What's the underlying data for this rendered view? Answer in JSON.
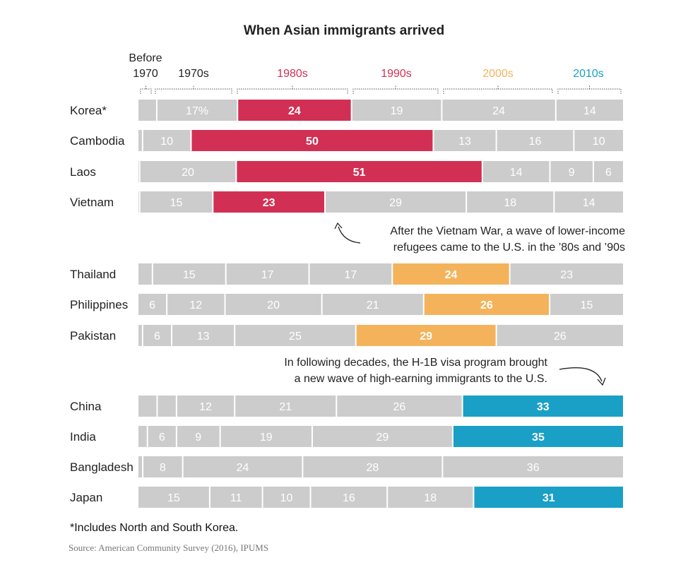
{
  "chart_data": {
    "type": "bar",
    "orientation": "horizontal",
    "stacked": true,
    "title": "When Asian immigrants arrived",
    "unit": "percent",
    "decades": [
      {
        "label": "Before 1970",
        "label_line1": "Before",
        "label_line2": "1970",
        "color": "#222222"
      },
      {
        "label": "1970s",
        "color": "#222222"
      },
      {
        "label": "1980s",
        "color": "#d13054"
      },
      {
        "label": "1990s",
        "color": "#d13054"
      },
      {
        "label": "2000s",
        "color": "#f4b35b"
      },
      {
        "label": "2010s",
        "color": "#1aa0c6"
      }
    ],
    "groups": [
      {
        "highlight_decade": "1980s",
        "highlight_color": "#d13054",
        "rows": [
          {
            "country": "Korea*",
            "values": [
              4,
              17,
              24,
              19,
              24,
              14
            ],
            "labels": [
              "",
              "17%",
              "24",
              "19",
              "24",
              "14"
            ]
          },
          {
            "country": "Cambodia",
            "values": [
              1,
              10,
              50,
              13,
              16,
              10
            ],
            "labels": [
              "",
              "10",
              "50",
              "13",
              "16",
              "10"
            ]
          },
          {
            "country": "Laos",
            "values": [
              0.4,
              20,
              51,
              14,
              9,
              6
            ],
            "labels": [
              "",
              "20",
              "51",
              "14",
              "9",
              "6"
            ]
          },
          {
            "country": "Vietnam",
            "values": [
              0.4,
              15,
              23,
              29,
              18,
              14
            ],
            "labels": [
              "",
              "15",
              "23",
              "29",
              "18",
              "14"
            ]
          }
        ]
      },
      {
        "highlight_decade": "2000s",
        "highlight_color": "#f4b35b",
        "rows": [
          {
            "country": "Thailand",
            "values": [
              3,
              15,
              17,
              17,
              24,
              23
            ],
            "labels": [
              "",
              "15",
              "17",
              "17",
              "24",
              "23"
            ]
          },
          {
            "country": "Philippines",
            "values": [
              6,
              12,
              20,
              21,
              26,
              15
            ],
            "labels": [
              "6",
              "12",
              "20",
              "21",
              "26",
              "15"
            ]
          },
          {
            "country": "Pakistan",
            "values": [
              1,
              6,
              13,
              25,
              29,
              26
            ],
            "labels": [
              "",
              "6",
              "13",
              "25",
              "29",
              "26"
            ]
          }
        ]
      },
      {
        "highlight_decade": "2010s",
        "highlight_color": "#1aa0c6",
        "rows": [
          {
            "country": "China",
            "values": [
              4,
              4,
              12,
              21,
              26,
              33
            ],
            "labels": [
              "",
              "",
              "12",
              "21",
              "26",
              "33"
            ]
          },
          {
            "country": "India",
            "values": [
              2,
              6,
              9,
              19,
              29,
              35
            ],
            "labels": [
              "",
              "6",
              "9",
              "19",
              "29",
              "35"
            ]
          },
          {
            "country": "Bangladesh",
            "values": [
              1,
              8,
              24,
              28,
              36,
              0
            ],
            "labels": [
              "",
              "8",
              "24",
              "28",
              "36",
              ""
            ]
          },
          {
            "country": "Japan",
            "values": [
              15,
              11,
              10,
              16,
              18,
              31
            ],
            "labels": [
              "15",
              "11",
              "10",
              "16",
              "18",
              "31"
            ]
          }
        ]
      }
    ],
    "annotations": [
      {
        "line1": "After the Vietnam War, a wave of lower-income",
        "line2": "refugees came to the U.S. in the ’80s and ’90s"
      },
      {
        "line1": "In following decades, the H-1B visa program brought",
        "line2": "a new wave of high-earning immigrants to the U.S."
      }
    ],
    "footnote": "*Includes North and South Korea.",
    "source": "Source: American Community Survey (2016), IPUMS"
  },
  "colors": {
    "bar_gray": "#cccccc",
    "label_gray": "#ffffff",
    "label_highlight": "#ffffff",
    "text": "#222222"
  }
}
